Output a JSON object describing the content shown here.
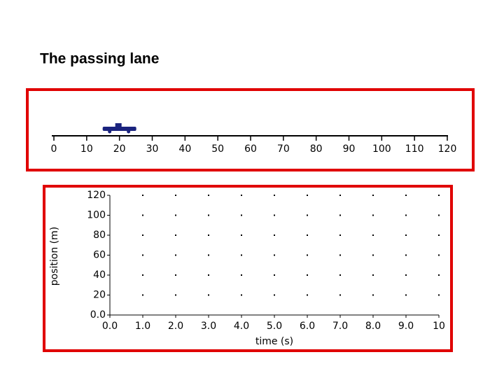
{
  "title": "The passing lane",
  "chart_data": [
    {
      "type": "number-line",
      "xlim": [
        0,
        120
      ],
      "xticks": [
        0,
        10,
        20,
        30,
        40,
        50,
        60,
        70,
        80,
        90,
        100,
        110,
        120
      ],
      "values": [
        20
      ],
      "color": "#1a237e",
      "frame_color": "#e00000"
    },
    {
      "type": "line",
      "x_label": "time (s)",
      "y_label": "position (m)",
      "xlim": [
        0,
        10
      ],
      "ylim": [
        0,
        120
      ],
      "xticks": [
        {
          "value": 0,
          "label": "0.0"
        },
        {
          "value": 1,
          "label": "1.0"
        },
        {
          "value": 2,
          "label": "2.0"
        },
        {
          "value": 3,
          "label": "3.0"
        },
        {
          "value": 4,
          "label": "4.0"
        },
        {
          "value": 5,
          "label": "5.0"
        },
        {
          "value": 6,
          "label": "6.0"
        },
        {
          "value": 7,
          "label": "7.0"
        },
        {
          "value": 8,
          "label": "8.0"
        },
        {
          "value": 9,
          "label": "9.0"
        },
        10
      ],
      "yticks": [
        {
          "value": 0,
          "label": "0.0"
        },
        20,
        40,
        60,
        80,
        100,
        120
      ],
      "series": [],
      "grid": true,
      "frame_color": "#e00000"
    }
  ]
}
